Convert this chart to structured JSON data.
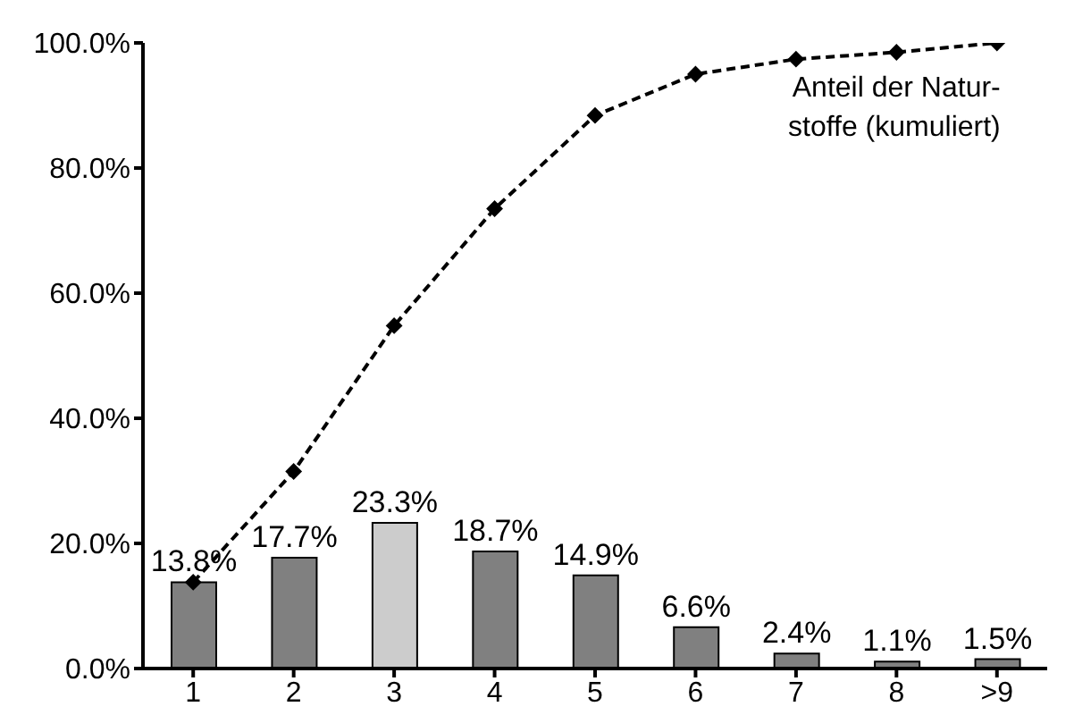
{
  "chart_data": {
    "type": "bar",
    "categories": [
      "1",
      "2",
      "3",
      "4",
      "5",
      "6",
      "7",
      "8",
      ">9"
    ],
    "series": [
      {
        "colors": [
          "#808080",
          "#808080",
          "#cccccc",
          "#808080",
          "#808080",
          "#808080",
          "#808080",
          "#808080",
          "#808080"
        ],
        "values": [
          13.8,
          17.7,
          23.3,
          18.7,
          14.9,
          6.6,
          2.4,
          1.1,
          1.5
        ],
        "value_labels": [
          "13.8%",
          "17.7%",
          "23.3%",
          "18.7%",
          "14.9%",
          "6.6%",
          "2.4%",
          "1.1%",
          "1.5%"
        ]
      },
      {
        "type": "line",
        "name": "Anteil der Natur-\nstoffe (kumuliert)",
        "color": "#000000",
        "values": [
          13.8,
          31.5,
          54.8,
          73.5,
          88.4,
          95.0,
          97.4,
          98.5,
          100.0
        ]
      }
    ],
    "ylim": [
      0,
      100
    ],
    "yticks": [
      {
        "value": 0,
        "label": "0.0%"
      },
      {
        "value": 20,
        "label": "20.0%"
      },
      {
        "value": 40,
        "label": "40.0%"
      },
      {
        "value": 60,
        "label": "60.0%"
      },
      {
        "value": 80,
        "label": "80.0%"
      },
      {
        "value": 100,
        "label": "100.0%"
      }
    ],
    "grid": false,
    "legend": false,
    "marker": "diamond",
    "line_style": "dashed"
  }
}
